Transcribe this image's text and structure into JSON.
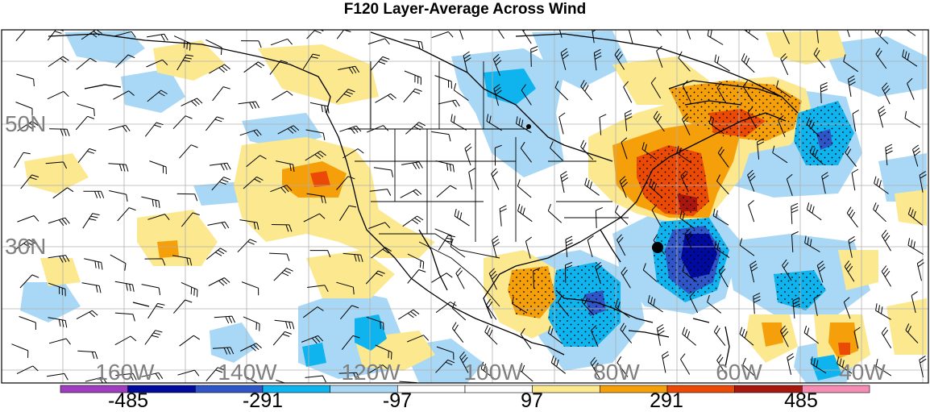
{
  "title": "F120 Layer-Average Across Wind",
  "lat_labels": [
    "50N",
    "30N"
  ],
  "lon_labels": [
    "160W",
    "140W",
    "120W",
    "100W",
    "80W",
    "60W",
    "40W"
  ],
  "colorbar": {
    "labels": [
      "-485",
      "-291",
      "-97",
      "97",
      "291",
      "485"
    ],
    "colors": [
      "#9f3fbf",
      "#000a9f",
      "#2f55c7",
      "#0fb4ee",
      "#a8d8f5",
      "#ffffff",
      "#ffffff",
      "#fbe88f",
      "#f5a00a",
      "#eb4a06",
      "#a8170f",
      "#f58cb4"
    ]
  },
  "colors": {
    "land_outline": "#000000",
    "grid": "#b0b0b0",
    "label_gray": "#808080",
    "marker": "#000000"
  }
}
